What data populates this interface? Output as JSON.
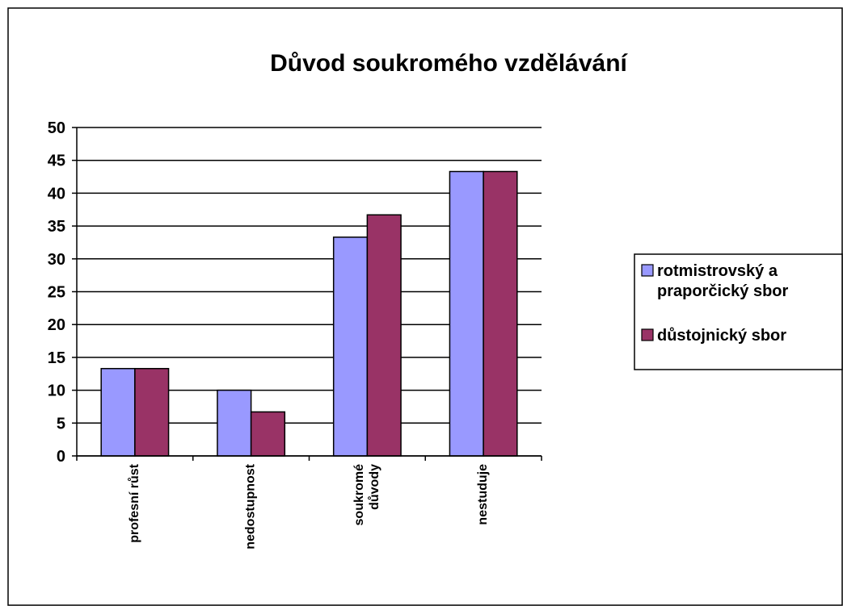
{
  "chart_data": {
    "type": "bar",
    "title": "Důvod soukromého vzdělávání",
    "categories": [
      "profesní růst",
      "nedostupnost",
      "soukromé důvody",
      "nestuduje"
    ],
    "series": [
      {
        "name": "rotmistrovský a praporčický sbor",
        "color": "#9999ff",
        "values": [
          13.3,
          10,
          33.3,
          43.3
        ]
      },
      {
        "name": "důstojnický sbor",
        "color": "#993366",
        "values": [
          13.3,
          6.7,
          36.7,
          43.3
        ]
      }
    ],
    "ylim": [
      0,
      50
    ],
    "yticks": [
      0,
      5,
      10,
      15,
      20,
      25,
      30,
      35,
      40,
      45,
      50
    ],
    "grid": true,
    "legend": "right"
  }
}
